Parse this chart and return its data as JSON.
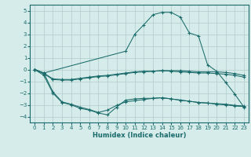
{
  "xlabel": "Humidex (Indice chaleur)",
  "bg_color": "#d6ecea",
  "line_color": "#1a6b6b",
  "grid_color": "#b0cccc",
  "xlim": [
    -0.5,
    23.5
  ],
  "ylim": [
    -4.5,
    5.5
  ],
  "yticks": [
    -4,
    -3,
    -2,
    -1,
    0,
    1,
    2,
    3,
    4,
    5
  ],
  "xticks": [
    0,
    1,
    2,
    3,
    4,
    5,
    6,
    7,
    8,
    9,
    10,
    11,
    12,
    13,
    14,
    15,
    16,
    17,
    18,
    19,
    20,
    21,
    22,
    23
  ],
  "line1_x": [
    0,
    1,
    2,
    3,
    4,
    5,
    6,
    7,
    8,
    9,
    10,
    11,
    12,
    13,
    14,
    15,
    16,
    17,
    18,
    19,
    20,
    21,
    22,
    23
  ],
  "line1_y": [
    0.0,
    -0.3,
    -0.8,
    -0.85,
    -0.85,
    -0.75,
    -0.65,
    -0.55,
    -0.5,
    -0.4,
    -0.3,
    -0.2,
    -0.15,
    -0.15,
    -0.1,
    -0.1,
    -0.1,
    -0.15,
    -0.2,
    -0.2,
    -0.2,
    -0.25,
    -0.35,
    -0.5
  ],
  "line2_x": [
    0,
    1,
    2,
    3,
    4,
    5,
    6,
    7,
    8,
    9,
    10,
    11,
    12,
    13,
    14,
    15,
    16,
    17,
    18,
    19,
    20,
    21,
    22,
    23
  ],
  "line2_y": [
    0.0,
    -0.35,
    -0.85,
    -0.9,
    -0.9,
    -0.8,
    -0.7,
    -0.6,
    -0.55,
    -0.45,
    -0.35,
    -0.25,
    -0.2,
    -0.15,
    -0.1,
    -0.15,
    -0.2,
    -0.25,
    -0.3,
    -0.3,
    -0.35,
    -0.4,
    -0.5,
    -0.65
  ],
  "line3_x": [
    0,
    1,
    2,
    3,
    4,
    5,
    6,
    7,
    8,
    9,
    10,
    11,
    12,
    13,
    14,
    15,
    16,
    17,
    18,
    19,
    20,
    21,
    22,
    23
  ],
  "line3_y": [
    0.0,
    -0.5,
    -2.0,
    -2.8,
    -3.0,
    -3.3,
    -3.45,
    -3.7,
    -3.85,
    -3.2,
    -2.6,
    -2.5,
    -2.45,
    -2.45,
    -2.4,
    -2.5,
    -2.6,
    -2.7,
    -2.8,
    -2.85,
    -2.95,
    -3.0,
    -3.1,
    -3.15
  ],
  "line4_x": [
    0,
    1,
    2,
    3,
    4,
    5,
    6,
    7,
    8,
    9,
    10,
    11,
    12,
    13,
    14,
    15,
    16,
    17,
    18,
    19,
    20,
    21,
    22,
    23
  ],
  "line4_y": [
    0.0,
    -0.3,
    -1.9,
    -2.75,
    -2.95,
    -3.2,
    -3.4,
    -3.65,
    -3.45,
    -3.05,
    -2.75,
    -2.65,
    -2.55,
    -2.45,
    -2.4,
    -2.5,
    -2.6,
    -2.7,
    -2.8,
    -2.85,
    -2.9,
    -2.95,
    -3.05,
    -3.1
  ],
  "line5_x": [
    0,
    1,
    10,
    11,
    12,
    13,
    14,
    15,
    16,
    17,
    18,
    19,
    20,
    21,
    22,
    23
  ],
  "line5_y": [
    0.0,
    -0.3,
    1.55,
    3.0,
    3.8,
    4.65,
    4.85,
    4.85,
    4.45,
    3.1,
    2.85,
    0.4,
    -0.15,
    -1.1,
    -2.1,
    -3.2
  ],
  "marker": "+"
}
